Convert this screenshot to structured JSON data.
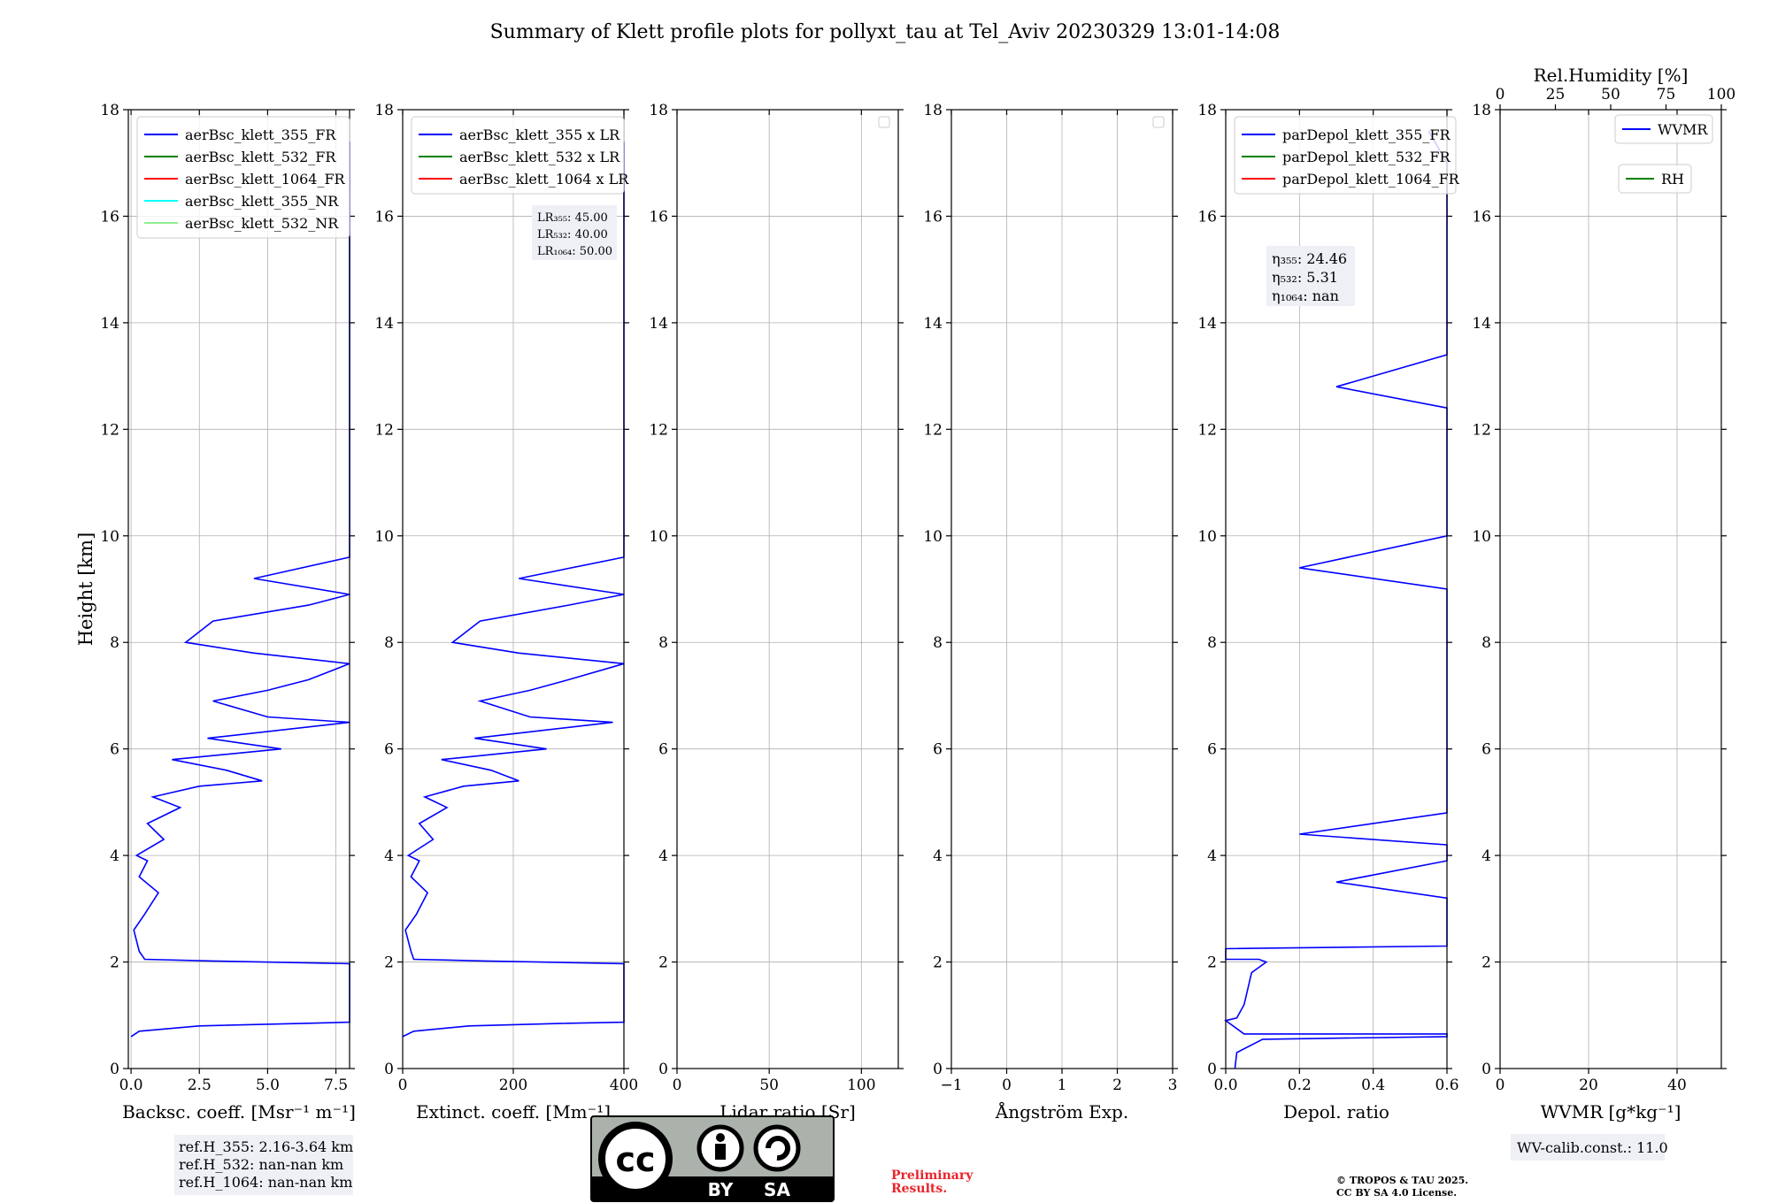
{
  "title": "Summary of Klett profile plots for pollyxt_tau at Tel_Aviv 20230329 13:01-14:08",
  "colors": {
    "line": "#0000ff",
    "grid": "#b0b0b0",
    "blue": "#0000ff",
    "green": "#008000",
    "red": "#ff0000",
    "cyan": "#00ffff",
    "lightgreen": "#90ee90"
  },
  "info": {
    "ref_h_355": "ref.H_355: 2.16-3.64 km",
    "ref_h_532": "ref.H_532: nan-nan km",
    "ref_h_1064": "ref.H_1064: nan-nan km",
    "wv_calib": "WV-calib.const.: 11.0",
    "prelim_1": "Preliminary",
    "prelim_2": "Results.",
    "copyright_1": "© TROPOS & TAU 2025.",
    "copyright_2": "CC BY SA 4.0 License.",
    "logo_by": "BY",
    "logo_sa": "SA"
  },
  "chart_data": [
    {
      "type": "line",
      "name": "backscatter",
      "xlabel": "Backsc. coeff. [Msr⁻¹ m⁻¹]",
      "ylabel": "Height [km]",
      "xlim": [
        -0.1,
        8.0
      ],
      "ylim": [
        0,
        18
      ],
      "xticks": [
        0,
        2.5,
        5.0,
        7.5
      ],
      "xticklabels": [
        "0.0",
        "2.5",
        "5.0",
        "7.5"
      ],
      "yticks": [
        0,
        2,
        4,
        6,
        8,
        10,
        12,
        14,
        16,
        18
      ],
      "grid": true,
      "legend": "top",
      "series": [
        {
          "name": "aerBsc_klett_355_FR",
          "color": "#0000ff"
        },
        {
          "name": "aerBsc_klett_532_FR",
          "color": "#008000"
        },
        {
          "name": "aerBsc_klett_1064_FR",
          "color": "#ff0000"
        },
        {
          "name": "aerBsc_klett_355_NR",
          "color": "#00ffff"
        },
        {
          "name": "aerBsc_klett_532_NR",
          "color": "#90ee90"
        }
      ],
      "profile": [
        [
          0.0,
          0.6
        ],
        [
          0.3,
          0.7
        ],
        [
          2.5,
          0.8
        ],
        [
          6.5,
          0.85
        ],
        [
          8.0,
          0.87
        ],
        [
          8.0,
          1.97
        ],
        [
          3.0,
          2.02
        ],
        [
          0.5,
          2.05
        ],
        [
          0.3,
          2.2
        ],
        [
          0.1,
          2.6
        ],
        [
          0.5,
          2.9
        ],
        [
          1.0,
          3.3
        ],
        [
          0.3,
          3.6
        ],
        [
          0.6,
          3.9
        ],
        [
          0.2,
          4.0
        ],
        [
          1.2,
          4.3
        ],
        [
          0.6,
          4.6
        ],
        [
          1.8,
          4.9
        ],
        [
          0.8,
          5.1
        ],
        [
          2.5,
          5.3
        ],
        [
          4.8,
          5.4
        ],
        [
          3.5,
          5.6
        ],
        [
          1.5,
          5.8
        ],
        [
          5.5,
          6.0
        ],
        [
          2.8,
          6.2
        ],
        [
          8.0,
          6.5
        ],
        [
          5.0,
          6.6
        ],
        [
          3.0,
          6.9
        ],
        [
          5.0,
          7.1
        ],
        [
          6.5,
          7.3
        ],
        [
          8.0,
          7.6
        ],
        [
          4.5,
          7.8
        ],
        [
          2.0,
          8.0
        ],
        [
          3.0,
          8.4
        ],
        [
          6.5,
          8.7
        ],
        [
          8.0,
          8.9
        ],
        [
          4.5,
          9.2
        ],
        [
          8.0,
          9.6
        ],
        [
          8.0,
          10.2
        ],
        [
          8.0,
          10.8
        ],
        [
          8.0,
          11.4
        ],
        [
          8.0,
          12.0
        ],
        [
          8.0,
          12.6
        ],
        [
          8.0,
          13.2
        ],
        [
          8.0,
          13.8
        ],
        [
          8.0,
          14.4
        ],
        [
          8.0,
          15.0
        ],
        [
          8.0,
          15.6
        ],
        [
          8.0,
          16.2
        ],
        [
          8.0,
          16.8
        ],
        [
          8.0,
          17.4
        ]
      ]
    },
    {
      "type": "line",
      "name": "extinction",
      "xlabel": "Extinct. coeff. [Mm⁻¹]",
      "xlim": [
        0,
        400
      ],
      "ylim": [
        0,
        18
      ],
      "xticks": [
        0,
        200,
        400
      ],
      "xticklabels": [
        "0",
        "200",
        "400"
      ],
      "yticks": [
        0,
        2,
        4,
        6,
        8,
        10,
        12,
        14,
        16,
        18
      ],
      "grid": true,
      "legend": "top",
      "series": [
        {
          "name": "aerBsc_klett_355 x LR",
          "color": "#0000ff"
        },
        {
          "name": "aerBsc_klett_532 x LR",
          "color": "#008000"
        },
        {
          "name": "aerBsc_klett_1064 x LR",
          "color": "#ff0000"
        }
      ],
      "lidar_ratios": [
        "LR₃₅₅: 45.00",
        "LR₅₃₂: 40.00",
        "LR₁₀₆₄: 50.00"
      ],
      "profile": [
        [
          0,
          0.6
        ],
        [
          20,
          0.7
        ],
        [
          120,
          0.8
        ],
        [
          300,
          0.85
        ],
        [
          400,
          0.87
        ],
        [
          400,
          1.97
        ],
        [
          150,
          2.02
        ],
        [
          20,
          2.05
        ],
        [
          15,
          2.2
        ],
        [
          5,
          2.6
        ],
        [
          25,
          2.9
        ],
        [
          45,
          3.3
        ],
        [
          15,
          3.6
        ],
        [
          30,
          3.9
        ],
        [
          10,
          4.0
        ],
        [
          55,
          4.3
        ],
        [
          30,
          4.6
        ],
        [
          80,
          4.9
        ],
        [
          40,
          5.1
        ],
        [
          110,
          5.3
        ],
        [
          210,
          5.4
        ],
        [
          160,
          5.6
        ],
        [
          70,
          5.8
        ],
        [
          260,
          6.0
        ],
        [
          130,
          6.2
        ],
        [
          380,
          6.5
        ],
        [
          230,
          6.6
        ],
        [
          140,
          6.9
        ],
        [
          230,
          7.1
        ],
        [
          300,
          7.3
        ],
        [
          400,
          7.6
        ],
        [
          210,
          7.8
        ],
        [
          90,
          8.0
        ],
        [
          140,
          8.4
        ],
        [
          300,
          8.7
        ],
        [
          400,
          8.9
        ],
        [
          210,
          9.2
        ],
        [
          400,
          9.6
        ],
        [
          400,
          10.2
        ],
        [
          400,
          10.8
        ],
        [
          400,
          11.4
        ],
        [
          400,
          12.0
        ],
        [
          400,
          12.6
        ],
        [
          400,
          13.2
        ],
        [
          400,
          13.8
        ],
        [
          400,
          14.4
        ],
        [
          400,
          15.0
        ],
        [
          400,
          15.6
        ],
        [
          400,
          16.2
        ],
        [
          400,
          16.8
        ],
        [
          400,
          17.4
        ]
      ]
    },
    {
      "type": "line",
      "name": "lidar-ratio",
      "xlabel": "Lidar ratio [Sr]",
      "xlim": [
        0,
        120
      ],
      "ylim": [
        0,
        18
      ],
      "xticks": [
        0,
        50,
        100
      ],
      "xticklabels": [
        "0",
        "50",
        "100"
      ],
      "yticks": [
        0,
        2,
        4,
        6,
        8,
        10,
        12,
        14,
        16,
        18
      ],
      "grid": true,
      "legend": "top-right (empty)"
    },
    {
      "type": "line",
      "name": "angstrom",
      "xlabel": "Ångström Exp.",
      "xlim": [
        -1,
        3
      ],
      "ylim": [
        0,
        18
      ],
      "xticks": [
        -1,
        0,
        1,
        2,
        3
      ],
      "xticklabels": [
        "−1",
        "0",
        "1",
        "2",
        "3"
      ],
      "yticks": [
        0,
        2,
        4,
        6,
        8,
        10,
        12,
        14,
        16,
        18
      ],
      "grid": true,
      "legend": "top-right (empty)"
    },
    {
      "type": "line",
      "name": "depolarization",
      "xlabel": "Depol. ratio",
      "xlim": [
        0.0,
        0.6
      ],
      "ylim": [
        0,
        18
      ],
      "xticks": [
        0.0,
        0.2,
        0.4,
        0.6
      ],
      "xticklabels": [
        "0.0",
        "0.2",
        "0.4",
        "0.6"
      ],
      "yticks": [
        0,
        2,
        4,
        6,
        8,
        10,
        12,
        14,
        16,
        18
      ],
      "grid": true,
      "legend": "top",
      "series": [
        {
          "name": "parDepol_klett_355_FR",
          "color": "#0000ff"
        },
        {
          "name": "parDepol_klett_532_FR",
          "color": "#008000"
        },
        {
          "name": "parDepol_klett_1064_FR",
          "color": "#ff0000"
        }
      ],
      "eta": [
        "η₃₅₅: 24.46",
        "η₅₃₂: 5.31",
        "η₁₀₆₄: nan"
      ],
      "profile": [
        [
          0.025,
          0.0
        ],
        [
          0.03,
          0.3
        ],
        [
          0.1,
          0.55
        ],
        [
          0.6,
          0.6
        ],
        [
          0.6,
          0.65
        ],
        [
          0.05,
          0.65
        ],
        [
          0.0,
          0.9
        ],
        [
          0.03,
          0.95
        ],
        [
          0.05,
          1.2
        ],
        [
          0.06,
          1.5
        ],
        [
          0.07,
          1.8
        ],
        [
          0.11,
          2.0
        ],
        [
          0.09,
          2.05
        ],
        [
          0.0,
          2.05
        ],
        [
          0.0,
          2.25
        ],
        [
          0.6,
          2.3
        ],
        [
          0.6,
          3.2
        ],
        [
          0.3,
          3.5
        ],
        [
          0.6,
          3.9
        ],
        [
          0.6,
          4.2
        ],
        [
          0.2,
          4.4
        ],
        [
          0.6,
          4.8
        ],
        [
          0.6,
          5.6
        ],
        [
          0.6,
          6.0
        ],
        [
          0.6,
          6.6
        ],
        [
          0.6,
          7.2
        ],
        [
          0.6,
          7.8
        ],
        [
          0.6,
          8.4
        ],
        [
          0.6,
          9.0
        ],
        [
          0.2,
          9.4
        ],
        [
          0.6,
          10.0
        ],
        [
          0.6,
          10.6
        ],
        [
          0.6,
          11.2
        ],
        [
          0.6,
          11.8
        ],
        [
          0.6,
          12.4
        ],
        [
          0.3,
          12.8
        ],
        [
          0.6,
          13.4
        ],
        [
          0.6,
          14.0
        ],
        [
          0.6,
          14.6
        ],
        [
          0.6,
          15.2
        ],
        [
          0.6,
          15.8
        ],
        [
          0.6,
          16.4
        ],
        [
          0.6,
          17.0
        ],
        [
          0.55,
          17.6
        ]
      ]
    },
    {
      "type": "line",
      "name": "wvmr",
      "xlabel": "WVMR [g*kg⁻¹]",
      "xlabel_top": "Rel.Humidity [%]",
      "xlim": [
        0,
        50
      ],
      "ylim": [
        0,
        18
      ],
      "xticks": [
        0,
        20,
        40
      ],
      "xticklabels": [
        "0",
        "20",
        "40"
      ],
      "xticks_top": [
        0,
        25,
        50,
        75,
        100
      ],
      "xticklabels_top": [
        "0",
        "25",
        "50",
        "75",
        "100"
      ],
      "xlim_top": [
        0,
        100
      ],
      "yticks": [
        0,
        2,
        4,
        6,
        8,
        10,
        12,
        14,
        16,
        18
      ],
      "grid": true,
      "legend": "top-right",
      "series": [
        {
          "name": "WVMR",
          "color": "#0000ff"
        },
        {
          "name": "RH",
          "color": "#008000"
        }
      ]
    }
  ]
}
